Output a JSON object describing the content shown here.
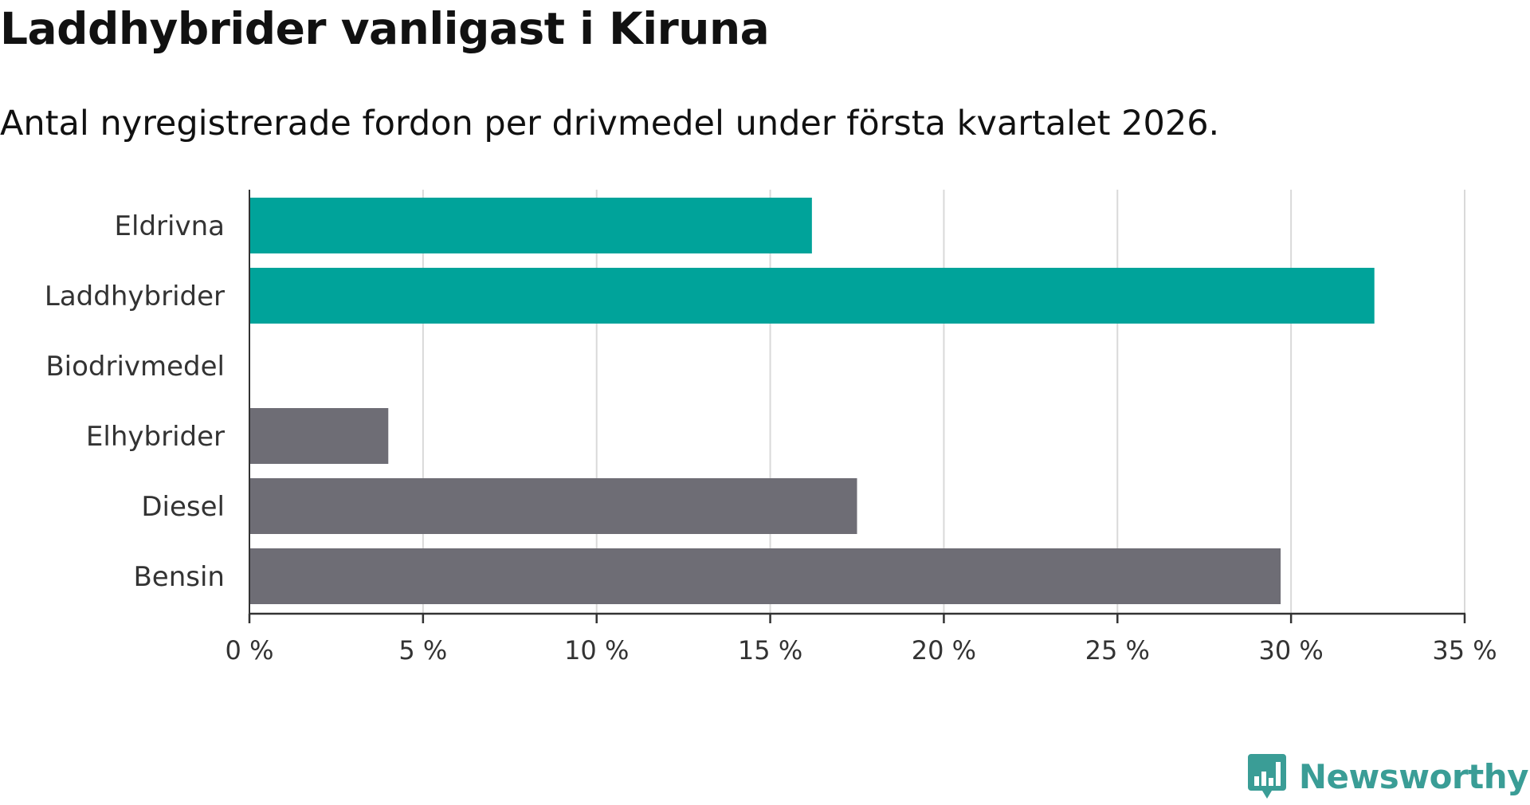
{
  "title": "Laddhybrider vanligast i Kiruna",
  "subtitle": "Antal nyregistrerade fordon per drivmedel under första kvartalet 2026.",
  "brand": {
    "name": "Newsworthy",
    "color": "#3a9d96",
    "logo_icon": "bar-chart-speech-bubble-icon"
  },
  "colors": {
    "highlight": "#00a39a",
    "default": "#6e6d75",
    "grid": "#d9d9d9",
    "axis": "#333333"
  },
  "chart_data": {
    "type": "bar",
    "orientation": "horizontal",
    "title": "Laddhybrider vanligast i Kiruna",
    "subtitle": "Antal nyregistrerade fordon per drivmedel under första kvartalet 2026.",
    "xlabel": "",
    "ylabel": "",
    "xlim": [
      0,
      35
    ],
    "ticks": [
      0,
      5,
      10,
      15,
      20,
      25,
      30,
      35
    ],
    "tick_labels": [
      "0 %",
      "5 %",
      "10 %",
      "15 %",
      "20 %",
      "25 %",
      "30 %",
      "35 %"
    ],
    "grid": true,
    "categories": [
      "Eldrivna",
      "Laddhybrider",
      "Biodrivmedel",
      "Elhybrider",
      "Diesel",
      "Bensin"
    ],
    "values": [
      16.2,
      32.4,
      0,
      4.0,
      17.5,
      29.7
    ],
    "highlight": [
      true,
      true,
      false,
      false,
      false,
      false
    ],
    "unit": "%"
  }
}
